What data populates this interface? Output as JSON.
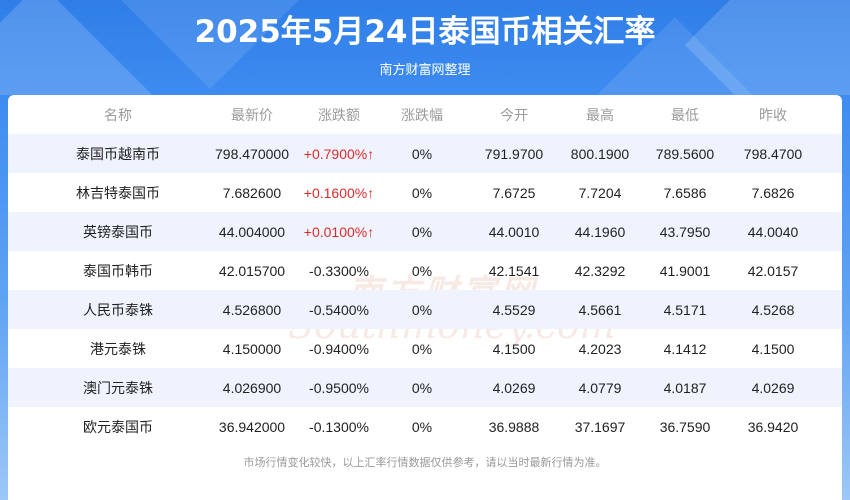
{
  "header": {
    "title": "2025年5月24日泰国币相关汇率",
    "subtitle": "南方财富网整理"
  },
  "watermark": {
    "cn": "南方财富网",
    "en": "Southmoney.com"
  },
  "table": {
    "columns": [
      "名称",
      "最新价",
      "涨跌额",
      "涨跌幅",
      "今开",
      "最高",
      "最低",
      "昨收"
    ],
    "rows": [
      {
        "name": "泰国币越南币",
        "latest": "798.470000",
        "change": "+0.7900%↑",
        "change_pct": "0%",
        "open": "791.9700",
        "high": "800.1900",
        "low": "789.5600",
        "prev_close": "798.4700",
        "up": true
      },
      {
        "name": "林吉特泰国币",
        "latest": "7.682600",
        "change": "+0.1600%↑",
        "change_pct": "0%",
        "open": "7.6725",
        "high": "7.7204",
        "low": "7.6586",
        "prev_close": "7.6826",
        "up": true
      },
      {
        "name": "英镑泰国币",
        "latest": "44.004000",
        "change": "+0.0100%↑",
        "change_pct": "0%",
        "open": "44.0010",
        "high": "44.1960",
        "low": "43.7950",
        "prev_close": "44.0040",
        "up": true
      },
      {
        "name": "泰国币韩币",
        "latest": "42.015700",
        "change": "-0.3300%",
        "change_pct": "0%",
        "open": "42.1541",
        "high": "42.3292",
        "low": "41.9001",
        "prev_close": "42.0157",
        "up": false
      },
      {
        "name": "人民币泰铢",
        "latest": "4.526800",
        "change": "-0.5400%",
        "change_pct": "0%",
        "open": "4.5529",
        "high": "4.5661",
        "low": "4.5171",
        "prev_close": "4.5268",
        "up": false
      },
      {
        "name": "港元泰铢",
        "latest": "4.150000",
        "change": "-0.9400%",
        "change_pct": "0%",
        "open": "4.1500",
        "high": "4.2023",
        "low": "4.1412",
        "prev_close": "4.1500",
        "up": false
      },
      {
        "name": "澳门元泰铢",
        "latest": "4.026900",
        "change": "-0.9500%",
        "change_pct": "0%",
        "open": "4.0269",
        "high": "4.0779",
        "low": "4.0187",
        "prev_close": "4.0269",
        "up": false
      },
      {
        "name": "欧元泰国币",
        "latest": "36.942000",
        "change": "-0.1300%",
        "change_pct": "0%",
        "open": "36.9888",
        "high": "37.1697",
        "low": "36.7590",
        "prev_close": "36.9420",
        "up": false
      }
    ]
  },
  "footer": {
    "note": "市场行情变化较快，以上汇率行情数据仅供参考，请以当时最新行情为准。"
  },
  "colors": {
    "header_blue": "#2f7ee8",
    "up_red": "#e02b2b",
    "alt_row": "#eef3fd"
  }
}
